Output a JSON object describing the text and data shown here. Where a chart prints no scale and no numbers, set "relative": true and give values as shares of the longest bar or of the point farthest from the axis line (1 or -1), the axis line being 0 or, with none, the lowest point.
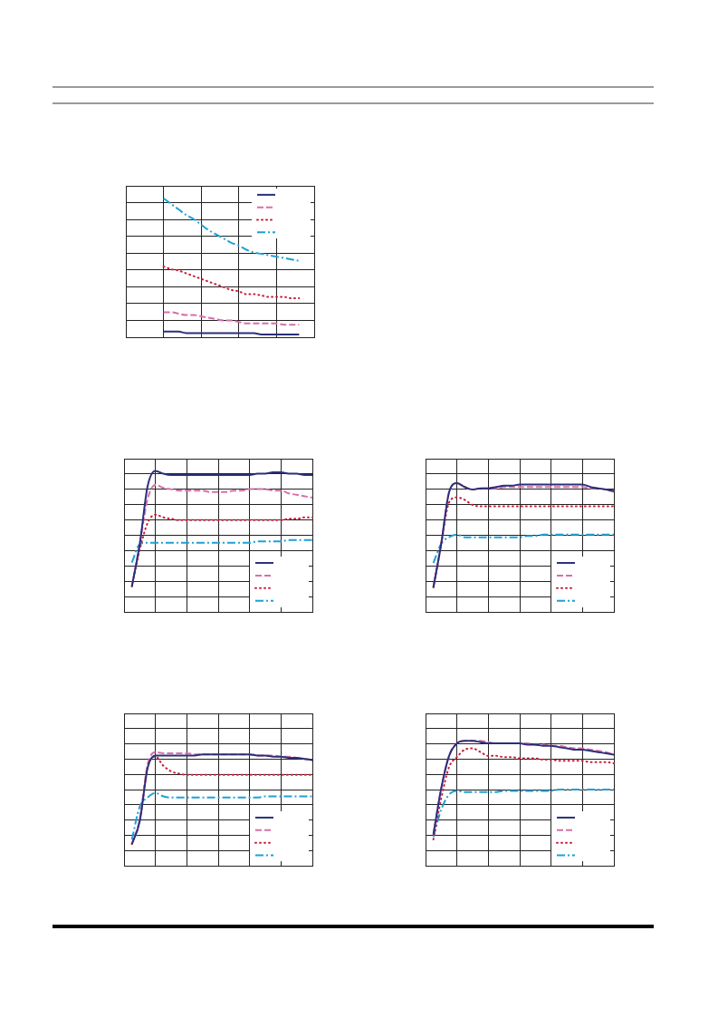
{
  "chart_data": [
    {
      "type": "line",
      "relative": true,
      "grid": true,
      "categories": [
        null,
        null,
        null,
        null,
        null,
        null,
        null,
        null,
        null,
        null,
        null,
        null,
        null,
        null,
        null,
        null,
        null,
        null,
        null,
        null,
        null,
        null,
        null,
        null,
        null,
        null
      ],
      "series": [
        {
          "color": "#2b2f7a",
          "line_style": "solid",
          "values": [
            null,
            null,
            null,
            null,
            null,
            0.04,
            0.04,
            0.04,
            0.03,
            0.03,
            0.03,
            0.03,
            0.03,
            0.03,
            0.03,
            0.03,
            0.03,
            0.03,
            0.02,
            0.02,
            0.02,
            0.02,
            0.02,
            0.02,
            null,
            null
          ]
        },
        {
          "color": "#d86fa8",
          "line_style": "dashed",
          "values": [
            null,
            null,
            null,
            null,
            null,
            0.18,
            0.18,
            0.17,
            0.16,
            0.16,
            0.15,
            0.14,
            0.13,
            0.12,
            0.12,
            0.11,
            0.1,
            0.1,
            0.1,
            0.1,
            0.1,
            0.09,
            0.09,
            0.09,
            null,
            null
          ]
        },
        {
          "color": "#c8203a",
          "line_style": "dotted",
          "values": [
            null,
            null,
            null,
            null,
            null,
            0.51,
            0.49,
            0.48,
            0.46,
            0.44,
            0.42,
            0.4,
            0.38,
            0.36,
            0.34,
            0.33,
            0.31,
            0.31,
            0.3,
            0.29,
            0.29,
            0.29,
            0.28,
            0.28,
            null,
            null
          ]
        },
        {
          "color": "#1ea0d8",
          "line_style": "dashdot",
          "values": [
            null,
            null,
            null,
            null,
            null,
            1.0,
            0.96,
            0.92,
            0.88,
            0.85,
            0.81,
            0.77,
            0.74,
            0.71,
            0.68,
            0.66,
            0.63,
            0.61,
            0.6,
            0.59,
            0.58,
            0.57,
            0.56,
            0.55,
            null,
            null
          ]
        }
      ]
    },
    {
      "type": "line",
      "relative": true,
      "grid": true,
      "categories": [
        null,
        null,
        null,
        null,
        null,
        null,
        null,
        null,
        null,
        null,
        null,
        null,
        null,
        null,
        null,
        null,
        null,
        null,
        null,
        null,
        null,
        null,
        null,
        null,
        null
      ],
      "series": [
        {
          "color": "#2b2f7a",
          "line_style": "solid",
          "values": [
            null,
            0.18,
            0.48,
            0.89,
            1.0,
            0.98,
            0.97,
            0.97,
            0.97,
            0.97,
            0.97,
            0.97,
            0.97,
            0.97,
            0.97,
            0.97,
            0.97,
            0.98,
            0.98,
            0.99,
            0.99,
            0.98,
            0.98,
            0.97,
            0.97
          ]
        },
        {
          "color": "#d86fa8",
          "line_style": "dashed",
          "values": [
            null,
            0.18,
            0.48,
            0.8,
            0.9,
            0.88,
            0.87,
            0.86,
            0.86,
            0.86,
            0.86,
            0.85,
            0.85,
            0.85,
            0.86,
            0.86,
            0.87,
            0.87,
            0.87,
            0.86,
            0.86,
            0.84,
            0.83,
            0.82,
            0.81
          ]
        },
        {
          "color": "#c8203a",
          "line_style": "dotted",
          "values": [
            null,
            0.18,
            0.44,
            0.63,
            0.69,
            0.67,
            0.66,
            0.65,
            0.65,
            0.65,
            0.65,
            0.65,
            0.65,
            0.65,
            0.65,
            0.65,
            0.65,
            0.65,
            0.65,
            0.65,
            0.65,
            0.66,
            0.66,
            0.67,
            0.67
          ]
        },
        {
          "color": "#1ea0d8",
          "line_style": "dashdot",
          "values": [
            null,
            0.35,
            0.48,
            0.49,
            0.49,
            0.49,
            0.49,
            0.49,
            0.49,
            0.49,
            0.49,
            0.49,
            0.49,
            0.49,
            0.49,
            0.49,
            0.49,
            0.5,
            0.5,
            0.5,
            0.5,
            0.51,
            0.51,
            0.51,
            0.51
          ]
        }
      ]
    },
    {
      "type": "line",
      "relative": true,
      "grid": true,
      "categories": [
        null,
        null,
        null,
        null,
        null,
        null,
        null,
        null,
        null,
        null,
        null,
        null,
        null,
        null,
        null,
        null,
        null,
        null,
        null,
        null,
        null,
        null,
        null,
        null,
        null
      ],
      "series": [
        {
          "color": "#2b2f7a",
          "line_style": "solid",
          "values": [
            null,
            0.19,
            0.53,
            0.93,
            1.0,
            0.97,
            0.95,
            0.96,
            0.96,
            0.97,
            0.98,
            0.98,
            0.99,
            0.99,
            0.99,
            0.99,
            0.99,
            0.99,
            0.99,
            0.99,
            0.99,
            0.97,
            0.96,
            0.95,
            0.94
          ]
        },
        {
          "color": "#d86fa8",
          "line_style": "dashed",
          "values": [
            null,
            0.19,
            0.53,
            0.93,
            1.0,
            0.97,
            0.95,
            0.96,
            0.96,
            0.96,
            0.97,
            0.97,
            0.97,
            0.97,
            0.97,
            0.97,
            0.97,
            0.97,
            0.97,
            0.97,
            0.97,
            0.96,
            0.96,
            0.95,
            0.93
          ]
        },
        {
          "color": "#c8203a",
          "line_style": "dotted",
          "values": [
            null,
            0.19,
            0.53,
            0.85,
            0.89,
            0.87,
            0.83,
            0.82,
            0.82,
            0.82,
            0.82,
            0.82,
            0.82,
            0.82,
            0.82,
            0.82,
            0.82,
            0.82,
            0.82,
            0.82,
            0.82,
            0.82,
            0.82,
            0.82,
            0.82
          ]
        },
        {
          "color": "#1ea0d8",
          "line_style": "dashdot",
          "values": [
            null,
            0.38,
            0.53,
            0.58,
            0.6,
            0.58,
            0.58,
            0.58,
            0.58,
            0.58,
            0.58,
            0.58,
            0.58,
            0.59,
            0.59,
            0.6,
            0.6,
            0.6,
            0.6,
            0.6,
            0.6,
            0.6,
            0.6,
            0.6,
            0.6
          ]
        }
      ]
    },
    {
      "type": "line",
      "relative": true,
      "grid": true,
      "categories": [
        null,
        null,
        null,
        null,
        null,
        null,
        null,
        null,
        null,
        null,
        null,
        null,
        null,
        null,
        null,
        null,
        null,
        null,
        null,
        null,
        null,
        null,
        null,
        null,
        null
      ],
      "series": [
        {
          "color": "#2b2f7a",
          "line_style": "solid",
          "values": [
            null,
            0.19,
            0.39,
            0.86,
            0.97,
            0.97,
            0.97,
            0.97,
            0.97,
            0.97,
            0.98,
            0.98,
            0.98,
            0.98,
            0.98,
            0.98,
            0.98,
            0.97,
            0.97,
            0.96,
            0.96,
            0.95,
            0.95,
            0.94,
            0.93
          ]
        },
        {
          "color": "#d86fa8",
          "line_style": "dashed",
          "values": [
            null,
            0.19,
            0.41,
            0.89,
            1.0,
            0.99,
            0.99,
            0.99,
            0.99,
            0.98,
            0.98,
            0.98,
            0.98,
            0.98,
            0.98,
            0.98,
            0.98,
            0.97,
            0.97,
            0.97,
            0.96,
            0.96,
            0.95,
            0.94,
            0.93
          ]
        },
        {
          "color": "#c8203a",
          "line_style": "dotted",
          "values": [
            null,
            0.19,
            0.4,
            0.86,
            0.96,
            0.88,
            0.83,
            0.81,
            0.8,
            0.8,
            0.8,
            0.8,
            0.8,
            0.8,
            0.8,
            0.8,
            0.8,
            0.8,
            0.8,
            0.8,
            0.8,
            0.8,
            0.8,
            0.8,
            0.8
          ]
        },
        {
          "color": "#1ea0d8",
          "line_style": "dashdot",
          "values": [
            null,
            0.23,
            0.52,
            0.6,
            0.64,
            0.61,
            0.6,
            0.6,
            0.6,
            0.6,
            0.6,
            0.6,
            0.6,
            0.6,
            0.6,
            0.6,
            0.6,
            0.6,
            0.61,
            0.61,
            0.61,
            0.61,
            0.61,
            0.61,
            0.61
          ]
        }
      ]
    },
    {
      "type": "line",
      "relative": true,
      "grid": true,
      "categories": [
        null,
        null,
        null,
        null,
        null,
        null,
        null,
        null,
        null,
        null,
        null,
        null,
        null,
        null,
        null,
        null,
        null,
        null,
        null,
        null,
        null,
        null,
        null,
        null,
        null
      ],
      "series": [
        {
          "color": "#2b2f7a",
          "line_style": "solid",
          "values": [
            null,
            0.25,
            0.62,
            0.88,
            0.98,
            1.0,
            1.0,
            0.99,
            0.98,
            0.98,
            0.98,
            0.98,
            0.98,
            0.97,
            0.97,
            0.96,
            0.96,
            0.95,
            0.94,
            0.93,
            0.93,
            0.92,
            0.91,
            0.9,
            0.89
          ]
        },
        {
          "color": "#d86fa8",
          "line_style": "dashed",
          "values": [
            null,
            0.25,
            0.62,
            0.88,
            0.98,
            1.0,
            1.0,
            1.0,
            0.99,
            0.98,
            0.98,
            0.98,
            0.98,
            0.98,
            0.97,
            0.97,
            0.96,
            0.96,
            0.95,
            0.94,
            0.94,
            0.93,
            0.92,
            0.91,
            0.89
          ]
        },
        {
          "color": "#c8203a",
          "line_style": "dotted",
          "values": [
            null,
            0.21,
            0.54,
            0.79,
            0.87,
            0.93,
            0.94,
            0.91,
            0.88,
            0.88,
            0.87,
            0.87,
            0.86,
            0.86,
            0.86,
            0.85,
            0.85,
            0.84,
            0.84,
            0.84,
            0.84,
            0.83,
            0.83,
            0.83,
            0.82
          ]
        },
        {
          "color": "#1ea0d8",
          "line_style": "dashdot",
          "values": [
            null,
            0.23,
            0.45,
            0.57,
            0.6,
            0.59,
            0.59,
            0.59,
            0.59,
            0.59,
            0.6,
            0.6,
            0.6,
            0.6,
            0.6,
            0.6,
            0.6,
            0.61,
            0.61,
            0.61,
            0.61,
            0.61,
            0.61,
            0.61,
            0.61
          ]
        }
      ]
    }
  ]
}
